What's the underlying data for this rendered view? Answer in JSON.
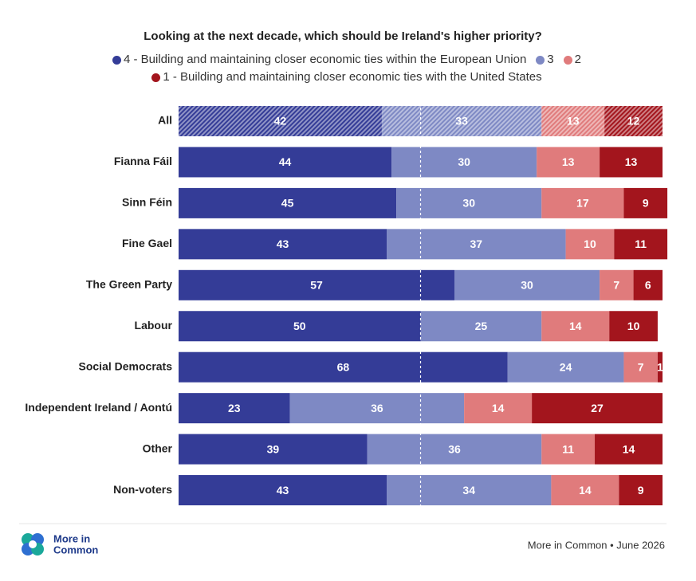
{
  "chart_data": {
    "type": "stacked_bar_horizontal",
    "title": "Looking at the next decade, which should be Ireland's higher priority?",
    "categories": [
      "All",
      "Fianna Fáil",
      "Sinn Féin",
      "Fine Gael",
      "The Green Party",
      "Labour",
      "Social Democrats",
      "Independent Ireland / Aontú",
      "Other",
      "Non-voters"
    ],
    "series": [
      {
        "name": "4 - Building and maintaining closer economic ties within the European Union",
        "color": "#343c97",
        "values": [
          42,
          44,
          45,
          43,
          57,
          50,
          68,
          23,
          39,
          43
        ]
      },
      {
        "name": "3",
        "color": "#7e89c4",
        "values": [
          33,
          30,
          30,
          37,
          30,
          25,
          24,
          36,
          36,
          34
        ]
      },
      {
        "name": "2",
        "color": "#e07b7c",
        "values": [
          13,
          13,
          17,
          10,
          7,
          14,
          7,
          14,
          11,
          14
        ]
      },
      {
        "name": "1 - Building and maintaining closer economic ties with the United States",
        "color": "#a3151d",
        "values": [
          12,
          13,
          9,
          11,
          6,
          10,
          1,
          27,
          14,
          9
        ]
      }
    ],
    "xlim": [
      0,
      100
    ],
    "reference_line": 50,
    "hatched_category": "All"
  },
  "footer": {
    "logo_text": [
      "More in",
      "Common"
    ],
    "source": "More in Common • June 2026"
  }
}
